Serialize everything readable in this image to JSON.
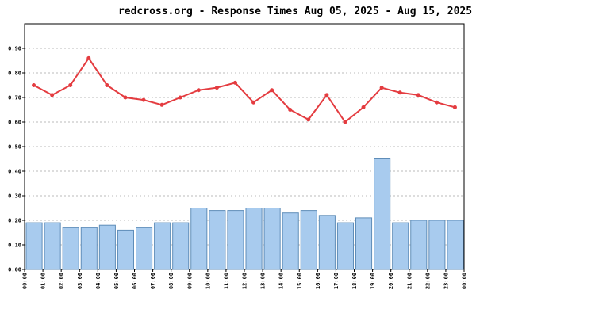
{
  "chart_data": {
    "type": "bar_line",
    "title": "redcross.org - Response Times Aug 05, 2025 - Aug 15, 2025",
    "xtick_labels": [
      "00:00",
      "01:00",
      "02:00",
      "03:00",
      "04:00",
      "05:00",
      "06:00",
      "07:00",
      "08:00",
      "09:00",
      "10:00",
      "11:00",
      "12:00",
      "13:00",
      "14:00",
      "15:00",
      "16:00",
      "17:00",
      "18:00",
      "19:00",
      "20:00",
      "21:00",
      "22:00",
      "23:00",
      "00:00"
    ],
    "bars": {
      "color": "#a8cbee",
      "values": [
        0.19,
        0.19,
        0.17,
        0.17,
        0.18,
        0.16,
        0.17,
        0.19,
        0.19,
        0.25,
        0.24,
        0.24,
        0.25,
        0.25,
        0.23,
        0.24,
        0.22,
        0.19,
        0.21,
        0.45,
        0.19,
        0.2,
        0.2,
        0.2
      ]
    },
    "line": {
      "color": "#e43c40",
      "values": [
        0.75,
        0.71,
        0.75,
        0.86,
        0.75,
        0.7,
        0.69,
        0.67,
        0.7,
        0.73,
        0.74,
        0.76,
        0.68,
        0.73,
        0.65,
        0.61,
        0.71,
        0.6,
        0.66,
        0.74,
        0.72,
        0.71,
        0.68,
        0.66
      ]
    },
    "ylim": [
      0,
      1.0
    ],
    "yticks": [
      {
        "value": 0,
        "label": "0.00"
      },
      {
        "value": 0.1,
        "label": "0.10"
      },
      {
        "value": 0.2,
        "label": "0.20"
      },
      {
        "value": 0.3,
        "label": "0.30"
      },
      {
        "value": 0.4,
        "label": "0.40"
      },
      {
        "value": 0.5,
        "label": "0.50"
      },
      {
        "value": 0.6,
        "label": "0.60"
      },
      {
        "value": 0.7,
        "label": "0.70"
      },
      {
        "value": 0.8,
        "label": "0.80"
      },
      {
        "value": 0.9,
        "label": "0.90"
      }
    ],
    "grid": true
  }
}
